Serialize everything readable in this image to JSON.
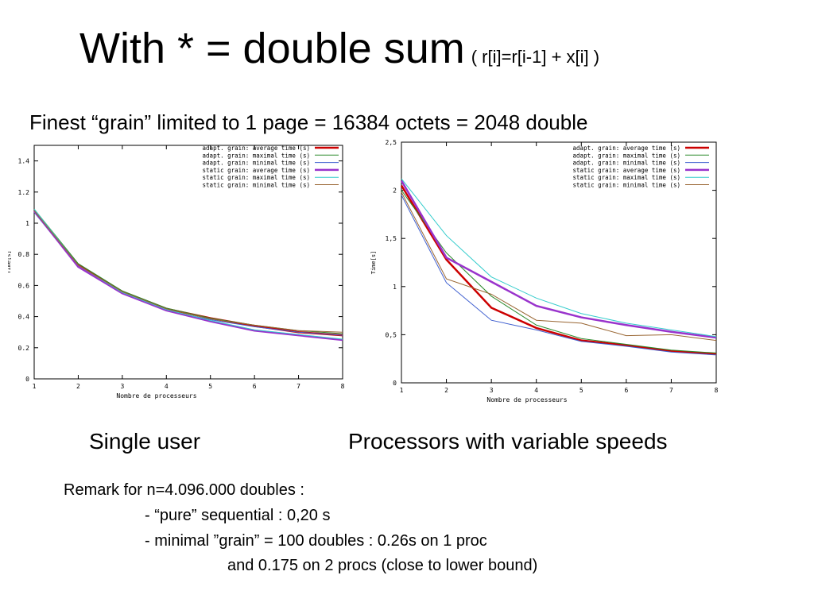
{
  "slide": {
    "title": "With *  = double sum",
    "title_formula": "( r[i]=r[i-1] + x[i] )",
    "subtitle": "Finest “grain” limited to 1 page = 16384 octets = 2048 double",
    "caption_left": "Single user",
    "caption_right": "Processors with variable speeds",
    "remark": {
      "line1": "Remark  for n=4.096.000 doubles  :",
      "line2": "- “pure” sequential : 0,20 s",
      "line3": "- minimal ”grain” = 100 doubles : 0.26s on 1 proc",
      "line4": "and 0.175 on 2 procs (close to lower bound)"
    }
  },
  "chart_data": [
    {
      "type": "line",
      "xlabel": "Nombre de processeurs",
      "ylabel": "Time[s]",
      "xlim": [
        1,
        8
      ],
      "ylim": [
        0,
        1.5
      ],
      "xticks": [
        1,
        2,
        3,
        4,
        5,
        6,
        7,
        8
      ],
      "yticks": [
        0,
        0.2,
        0.4,
        0.6,
        0.8,
        1,
        1.2,
        1.4
      ],
      "ytick_labels": [
        "0",
        "0.2",
        "0.4",
        "0.6",
        "0.8",
        "1",
        "1.2",
        "1.4"
      ],
      "legend_position": "top-right",
      "x": [
        1,
        2,
        3,
        4,
        5,
        6,
        7,
        8
      ],
      "series": [
        {
          "name": "adapt. grain: average time (s)",
          "color": "#cc0000",
          "values": [
            1.08,
            0.73,
            0.56,
            0.45,
            0.39,
            0.34,
            0.3,
            0.28
          ]
        },
        {
          "name": "adapt. grain: maximal time (s)",
          "color": "#2e8b2e",
          "values": [
            1.09,
            0.74,
            0.565,
            0.455,
            0.39,
            0.345,
            0.31,
            0.29
          ]
        },
        {
          "name": "adapt. grain: minimal time (s)",
          "color": "#4060d0",
          "values": [
            1.07,
            0.72,
            0.55,
            0.44,
            0.38,
            0.335,
            0.3,
            0.28
          ]
        },
        {
          "name": "static grain: average time (s)",
          "color": "#9933cc",
          "values": [
            1.08,
            0.72,
            0.55,
            0.44,
            0.37,
            0.31,
            0.28,
            0.25
          ]
        },
        {
          "name": "static grain: maximal time (s)",
          "color": "#33cccc",
          "values": [
            1.09,
            0.73,
            0.555,
            0.445,
            0.375,
            0.315,
            0.285,
            0.255
          ]
        },
        {
          "name": "static grain: minimal time (s)",
          "color": "#996633",
          "values": [
            1.08,
            0.73,
            0.56,
            0.45,
            0.385,
            0.345,
            0.31,
            0.3
          ]
        }
      ]
    },
    {
      "type": "line",
      "xlabel": "Nombre de processeurs",
      "ylabel": "Time[s]",
      "xlim": [
        1,
        8
      ],
      "ylim": [
        0,
        2.5
      ],
      "xticks": [
        1,
        2,
        3,
        4,
        5,
        6,
        7,
        8
      ],
      "yticks": [
        0,
        0.5,
        1,
        1.5,
        2,
        2.5
      ],
      "ytick_labels": [
        "0",
        "0,5",
        "1",
        "1,5",
        "2",
        "2,5"
      ],
      "legend_position": "top-right",
      "x": [
        1,
        2,
        3,
        4,
        5,
        6,
        7,
        8
      ],
      "series": [
        {
          "name": "adapt. grain: average time (s)",
          "color": "#cc0000",
          "values": [
            2.05,
            1.28,
            0.78,
            0.57,
            0.44,
            0.39,
            0.33,
            0.3
          ]
        },
        {
          "name": "adapt. grain: maximal time (s)",
          "color": "#2e8b2e",
          "values": [
            2.0,
            1.35,
            0.9,
            0.6,
            0.46,
            0.4,
            0.34,
            0.31
          ]
        },
        {
          "name": "adapt. grain: minimal time (s)",
          "color": "#4060d0",
          "values": [
            1.95,
            1.04,
            0.65,
            0.55,
            0.43,
            0.38,
            0.32,
            0.29
          ]
        },
        {
          "name": "static grain: average time (s)",
          "color": "#9933cc",
          "values": [
            2.1,
            1.3,
            1.05,
            0.8,
            0.68,
            0.6,
            0.53,
            0.47
          ]
        },
        {
          "name": "static grain: maximal time (s)",
          "color": "#33cccc",
          "values": [
            2.12,
            1.53,
            1.1,
            0.88,
            0.72,
            0.62,
            0.55,
            0.48
          ]
        },
        {
          "name": "static grain: minimal time (s)",
          "color": "#996633",
          "values": [
            1.98,
            1.08,
            0.92,
            0.65,
            0.62,
            0.49,
            0.5,
            0.44
          ]
        }
      ]
    }
  ]
}
